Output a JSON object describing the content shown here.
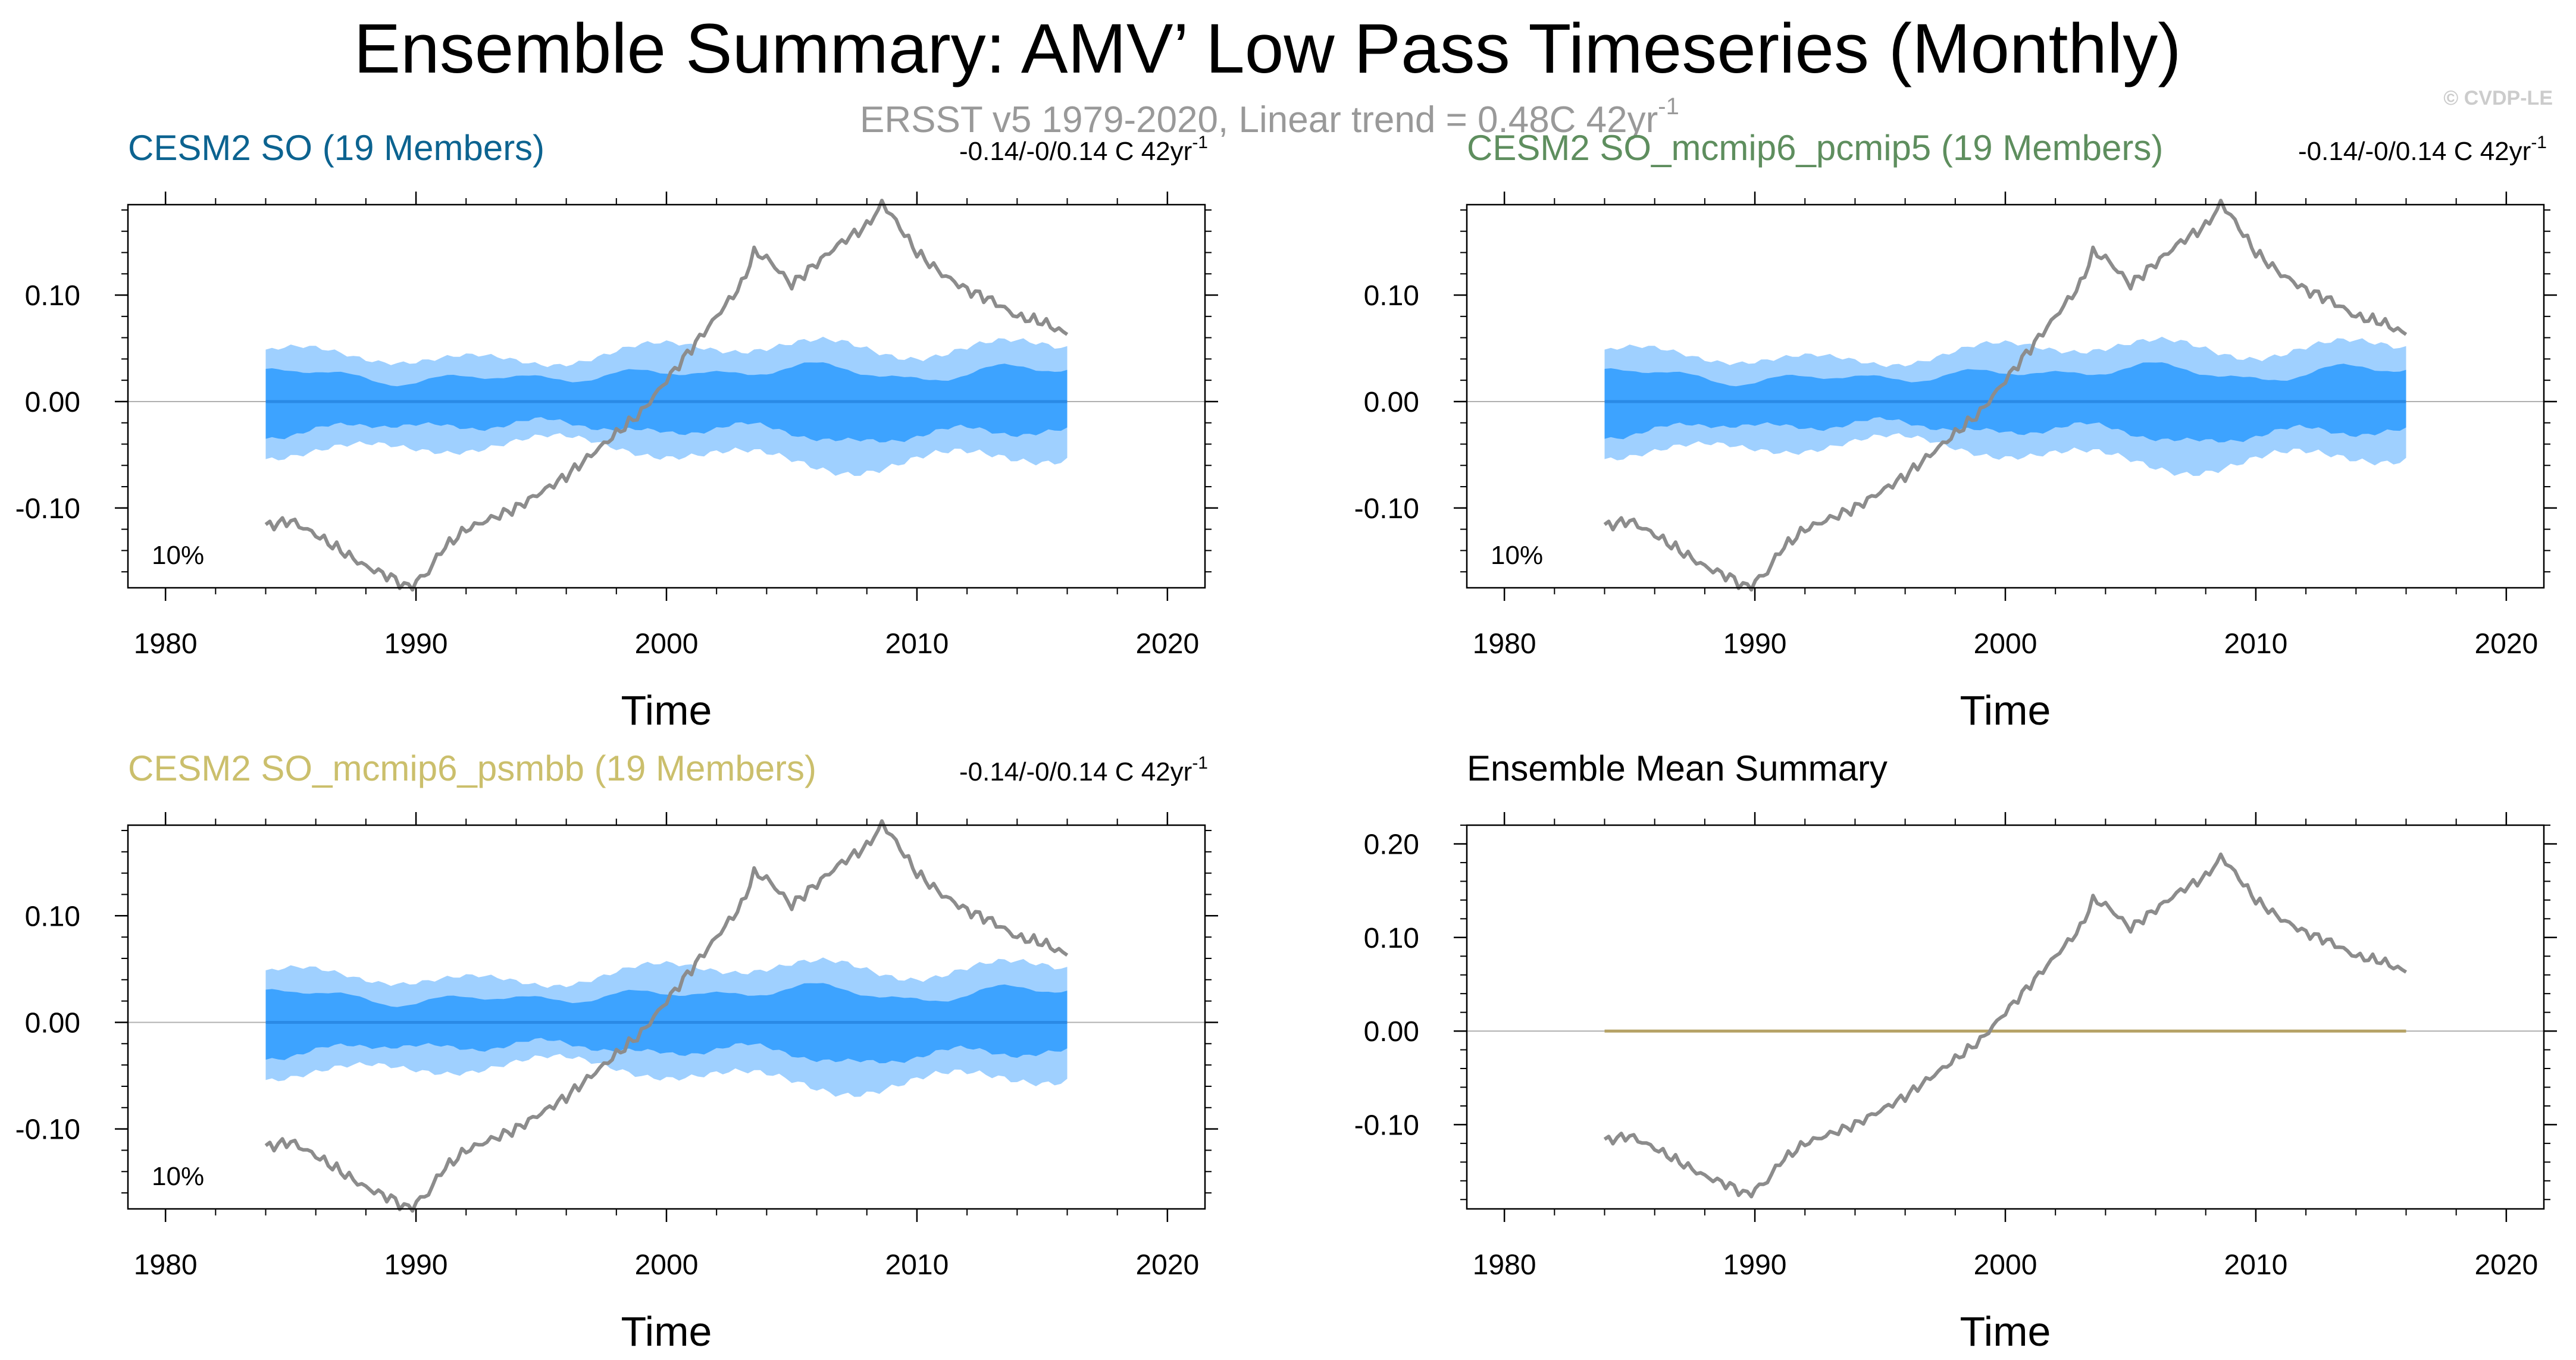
{
  "title": "Ensemble Summary: AMV’ Low Pass Timeseries (Monthly)",
  "subtitle": "ERSST v5 1979-2020, Linear trend = 0.48C 42yr",
  "subtitle_sup": "-1",
  "watermark": "© CVDP-LE",
  "colors": {
    "obs_line": "#8c8c8c",
    "band_outer": "#9fd0ff",
    "band_inner": "#3da3ff",
    "ens_mean": "#2a8ae6",
    "mean_summary_line": "#b5a265",
    "title_so": "#0c6390",
    "title_pcmip5": "#5e8e5e",
    "title_psmbb": "#cbbf6c"
  },
  "chart_data": [
    {
      "type": "line",
      "panel": "top-left",
      "title": "CESM2 SO (19 Members)",
      "trend_text": "-0.14/-0/0.14 C 42yr",
      "trend_sup": "-1",
      "percent_label": "10%",
      "xlabel": "Time",
      "ylabel": "",
      "xlim": [
        1978.5,
        2021.5
      ],
      "ylim": [
        -0.175,
        0.185
      ],
      "xticks": [
        1980,
        1990,
        2000,
        2010,
        2020
      ],
      "yticks": [
        -0.1,
        0.0,
        0.1
      ],
      "ytick_labels": [
        "-0.10",
        "0.00",
        "0.10"
      ],
      "band_range": [
        1984.0,
        2016.0
      ],
      "series": [
        {
          "name": "ERSST v5 observations",
          "x": [
            1984,
            1985,
            1986,
            1987,
            1988,
            1989,
            1989.7,
            1990.5,
            1991,
            1992,
            1993,
            1994,
            1995,
            1996,
            1997,
            1998,
            1999,
            2000,
            2001,
            2002,
            2003,
            2003.5,
            2004,
            2005,
            2006,
            2007,
            2008,
            2008.6,
            2009,
            2010,
            2011,
            2012,
            2013,
            2014,
            2015,
            2016
          ],
          "values": [
            -0.117,
            -0.112,
            -0.125,
            -0.14,
            -0.155,
            -0.165,
            -0.175,
            -0.16,
            -0.14,
            -0.12,
            -0.11,
            -0.1,
            -0.085,
            -0.07,
            -0.05,
            -0.03,
            -0.01,
            0.02,
            0.05,
            0.08,
            0.11,
            0.14,
            0.135,
            0.11,
            0.13,
            0.15,
            0.165,
            0.185,
            0.175,
            0.14,
            0.12,
            0.105,
            0.095,
            0.08,
            0.075,
            0.063
          ]
        },
        {
          "name": "Ensemble mean",
          "x": [
            1984,
            2016
          ],
          "values": [
            0.0,
            0.0
          ]
        }
      ]
    },
    {
      "type": "line",
      "panel": "top-right",
      "title": "CESM2 SO_mcmip6_pcmip5 (19 Members)",
      "trend_text": "-0.14/-0/0.14 C 42yr",
      "trend_sup": "-1",
      "percent_label": "10%",
      "xlabel": "Time",
      "ylabel": "",
      "xlim": [
        1978.5,
        2021.5
      ],
      "ylim": [
        -0.175,
        0.185
      ],
      "xticks": [
        1980,
        1990,
        2000,
        2010,
        2020
      ],
      "yticks": [
        -0.1,
        0.0,
        0.1
      ],
      "ytick_labels": [
        "-0.10",
        "0.00",
        "0.10"
      ],
      "band_range": [
        1984.0,
        2016.0
      ],
      "series": [
        {
          "name": "ERSST v5 observations",
          "x": [
            1984,
            1985,
            1986,
            1987,
            1988,
            1989,
            1989.7,
            1990.5,
            1991,
            1992,
            1993,
            1994,
            1995,
            1996,
            1997,
            1998,
            1999,
            2000,
            2001,
            2002,
            2003,
            2003.5,
            2004,
            2005,
            2006,
            2007,
            2008,
            2008.6,
            2009,
            2010,
            2011,
            2012,
            2013,
            2014,
            2015,
            2016
          ],
          "values": [
            -0.117,
            -0.112,
            -0.125,
            -0.14,
            -0.155,
            -0.165,
            -0.175,
            -0.16,
            -0.14,
            -0.12,
            -0.11,
            -0.1,
            -0.085,
            -0.07,
            -0.05,
            -0.03,
            -0.01,
            0.02,
            0.05,
            0.08,
            0.11,
            0.14,
            0.135,
            0.11,
            0.13,
            0.15,
            0.165,
            0.185,
            0.175,
            0.14,
            0.12,
            0.105,
            0.095,
            0.08,
            0.075,
            0.063
          ]
        },
        {
          "name": "Ensemble mean",
          "x": [
            1984,
            2016
          ],
          "values": [
            0.0,
            0.0
          ]
        }
      ]
    },
    {
      "type": "line",
      "panel": "bottom-left",
      "title": "CESM2 SO_mcmip6_psmbb (19 Members)",
      "trend_text": "-0.14/-0/0.14 C 42yr",
      "trend_sup": "-1",
      "percent_label": "10%",
      "xlabel": "Time",
      "ylabel": "",
      "xlim": [
        1978.5,
        2021.5
      ],
      "ylim": [
        -0.175,
        0.185
      ],
      "xticks": [
        1980,
        1990,
        2000,
        2010,
        2020
      ],
      "yticks": [
        -0.1,
        0.0,
        0.1
      ],
      "ytick_labels": [
        "-0.10",
        "0.00",
        "0.10"
      ],
      "band_range": [
        1984.0,
        2016.0
      ],
      "series": [
        {
          "name": "ERSST v5 observations",
          "x": [
            1984,
            1985,
            1986,
            1987,
            1988,
            1989,
            1989.7,
            1990.5,
            1991,
            1992,
            1993,
            1994,
            1995,
            1996,
            1997,
            1998,
            1999,
            2000,
            2001,
            2002,
            2003,
            2003.5,
            2004,
            2005,
            2006,
            2007,
            2008,
            2008.6,
            2009,
            2010,
            2011,
            2012,
            2013,
            2014,
            2015,
            2016
          ],
          "values": [
            -0.117,
            -0.112,
            -0.125,
            -0.14,
            -0.155,
            -0.165,
            -0.175,
            -0.16,
            -0.14,
            -0.12,
            -0.11,
            -0.1,
            -0.085,
            -0.07,
            -0.05,
            -0.03,
            -0.01,
            0.02,
            0.05,
            0.08,
            0.11,
            0.14,
            0.135,
            0.11,
            0.13,
            0.15,
            0.165,
            0.185,
            0.175,
            0.14,
            0.12,
            0.105,
            0.095,
            0.08,
            0.075,
            0.063
          ]
        },
        {
          "name": "Ensemble mean",
          "x": [
            1984,
            2016
          ],
          "values": [
            0.0,
            0.0
          ]
        }
      ]
    },
    {
      "type": "line",
      "panel": "bottom-right",
      "title": "Ensemble Mean Summary",
      "xlabel": "Time",
      "ylabel": "",
      "xlim": [
        1978.5,
        2021.5
      ],
      "ylim": [
        -0.19,
        0.22
      ],
      "xticks": [
        1980,
        1990,
        2000,
        2010,
        2020
      ],
      "yticks": [
        -0.1,
        0.0,
        0.1,
        0.2
      ],
      "ytick_labels": [
        "-0.10",
        "0.00",
        "0.10",
        "0.20"
      ],
      "series": [
        {
          "name": "ERSST v5 observations",
          "x": [
            1984,
            1985,
            1986,
            1987,
            1988,
            1989,
            1989.7,
            1990.5,
            1991,
            1992,
            1993,
            1994,
            1995,
            1996,
            1997,
            1998,
            1999,
            2000,
            2001,
            2002,
            2003,
            2003.5,
            2004,
            2005,
            2006,
            2007,
            2008,
            2008.6,
            2009,
            2010,
            2011,
            2012,
            2013,
            2014,
            2015,
            2016
          ],
          "values": [
            -0.117,
            -0.112,
            -0.125,
            -0.14,
            -0.155,
            -0.165,
            -0.175,
            -0.16,
            -0.14,
            -0.12,
            -0.11,
            -0.1,
            -0.085,
            -0.07,
            -0.05,
            -0.03,
            -0.01,
            0.02,
            0.05,
            0.08,
            0.11,
            0.14,
            0.135,
            0.11,
            0.13,
            0.15,
            0.165,
            0.185,
            0.175,
            0.14,
            0.12,
            0.105,
            0.095,
            0.08,
            0.075,
            0.063
          ]
        },
        {
          "name": "Ensemble mean",
          "x": [
            1984,
            2016
          ],
          "values": [
            0.0,
            0.0
          ]
        }
      ]
    }
  ]
}
